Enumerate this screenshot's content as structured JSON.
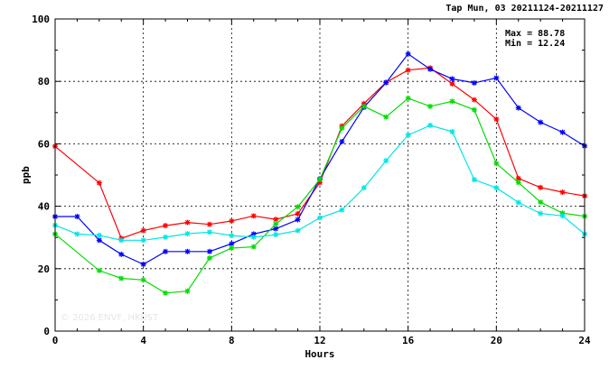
{
  "chart_data": {
    "type": "line",
    "title": "Tap Mun, 03 20211124-20211127",
    "xlabel": "Hours",
    "ylabel": "ppb",
    "xlim": [
      0,
      24
    ],
    "ylim": [
      0,
      100
    ],
    "x_ticks": [
      0,
      4,
      8,
      12,
      16,
      20,
      24
    ],
    "y_ticks": [
      0,
      20,
      40,
      60,
      80,
      100
    ],
    "grid": true,
    "max_label": "Max = 88.78",
    "min_label": "Min = 12.24",
    "watermark": "© 2026 ENVF, HKUST",
    "series": [
      {
        "color": "#ff0000",
        "x": [
          0,
          2,
          3,
          4,
          5,
          6,
          7,
          8,
          9,
          10,
          11,
          12,
          13,
          14,
          15,
          16,
          17,
          18,
          19,
          20,
          21,
          22,
          23,
          24
        ],
        "values": [
          59.2,
          47.5,
          29.7,
          32.2,
          33.8,
          34.8,
          34.2,
          35.3,
          36.9,
          35.8,
          37.6,
          47.6,
          65.7,
          72.9,
          79.7,
          83.6,
          84.3,
          79.2,
          74.1,
          67.9,
          48.9,
          46.0,
          44.5,
          43.3
        ]
      },
      {
        "color": "#0000ff",
        "x": [
          0,
          1,
          2,
          3,
          4,
          5,
          6,
          7,
          8,
          9,
          10,
          11,
          12,
          13,
          14,
          15,
          16,
          17,
          18,
          19,
          20,
          21,
          22,
          23,
          24
        ],
        "values": [
          36.7,
          36.7,
          29.1,
          24.6,
          21.4,
          25.5,
          25.5,
          25.5,
          28.0,
          31.1,
          32.8,
          35.7,
          48.8,
          60.7,
          71.7,
          79.6,
          88.8,
          83.9,
          80.8,
          79.5,
          81.1,
          71.5,
          66.9,
          63.7,
          59.3
        ]
      },
      {
        "color": "#00dd00",
        "x": [
          0,
          2,
          3,
          4,
          5,
          6,
          7,
          8,
          9,
          10,
          11,
          12,
          13,
          14,
          15,
          16,
          17,
          18,
          19,
          20,
          21,
          22,
          23,
          24
        ],
        "values": [
          31.1,
          19.4,
          16.9,
          16.4,
          12.2,
          12.8,
          23.4,
          26.6,
          27.0,
          34.3,
          39.8,
          48.6,
          65.0,
          72.0,
          68.6,
          74.6,
          72.0,
          73.6,
          70.9,
          53.7,
          47.6,
          41.3,
          37.8,
          36.8
        ]
      },
      {
        "color": "#00e5e5",
        "x": [
          0,
          1,
          2,
          3,
          4,
          5,
          6,
          7,
          8,
          9,
          10,
          11,
          12,
          13,
          14,
          15,
          16,
          17,
          18,
          19,
          20,
          21,
          22,
          23,
          24
        ],
        "values": [
          33.9,
          31.1,
          30.7,
          29.1,
          29.1,
          30.1,
          31.2,
          31.7,
          30.6,
          30.1,
          30.9,
          32.2,
          36.3,
          38.8,
          45.9,
          54.6,
          62.8,
          65.9,
          63.9,
          48.5,
          45.9,
          41.2,
          37.7,
          36.9,
          31.1
        ]
      }
    ]
  }
}
